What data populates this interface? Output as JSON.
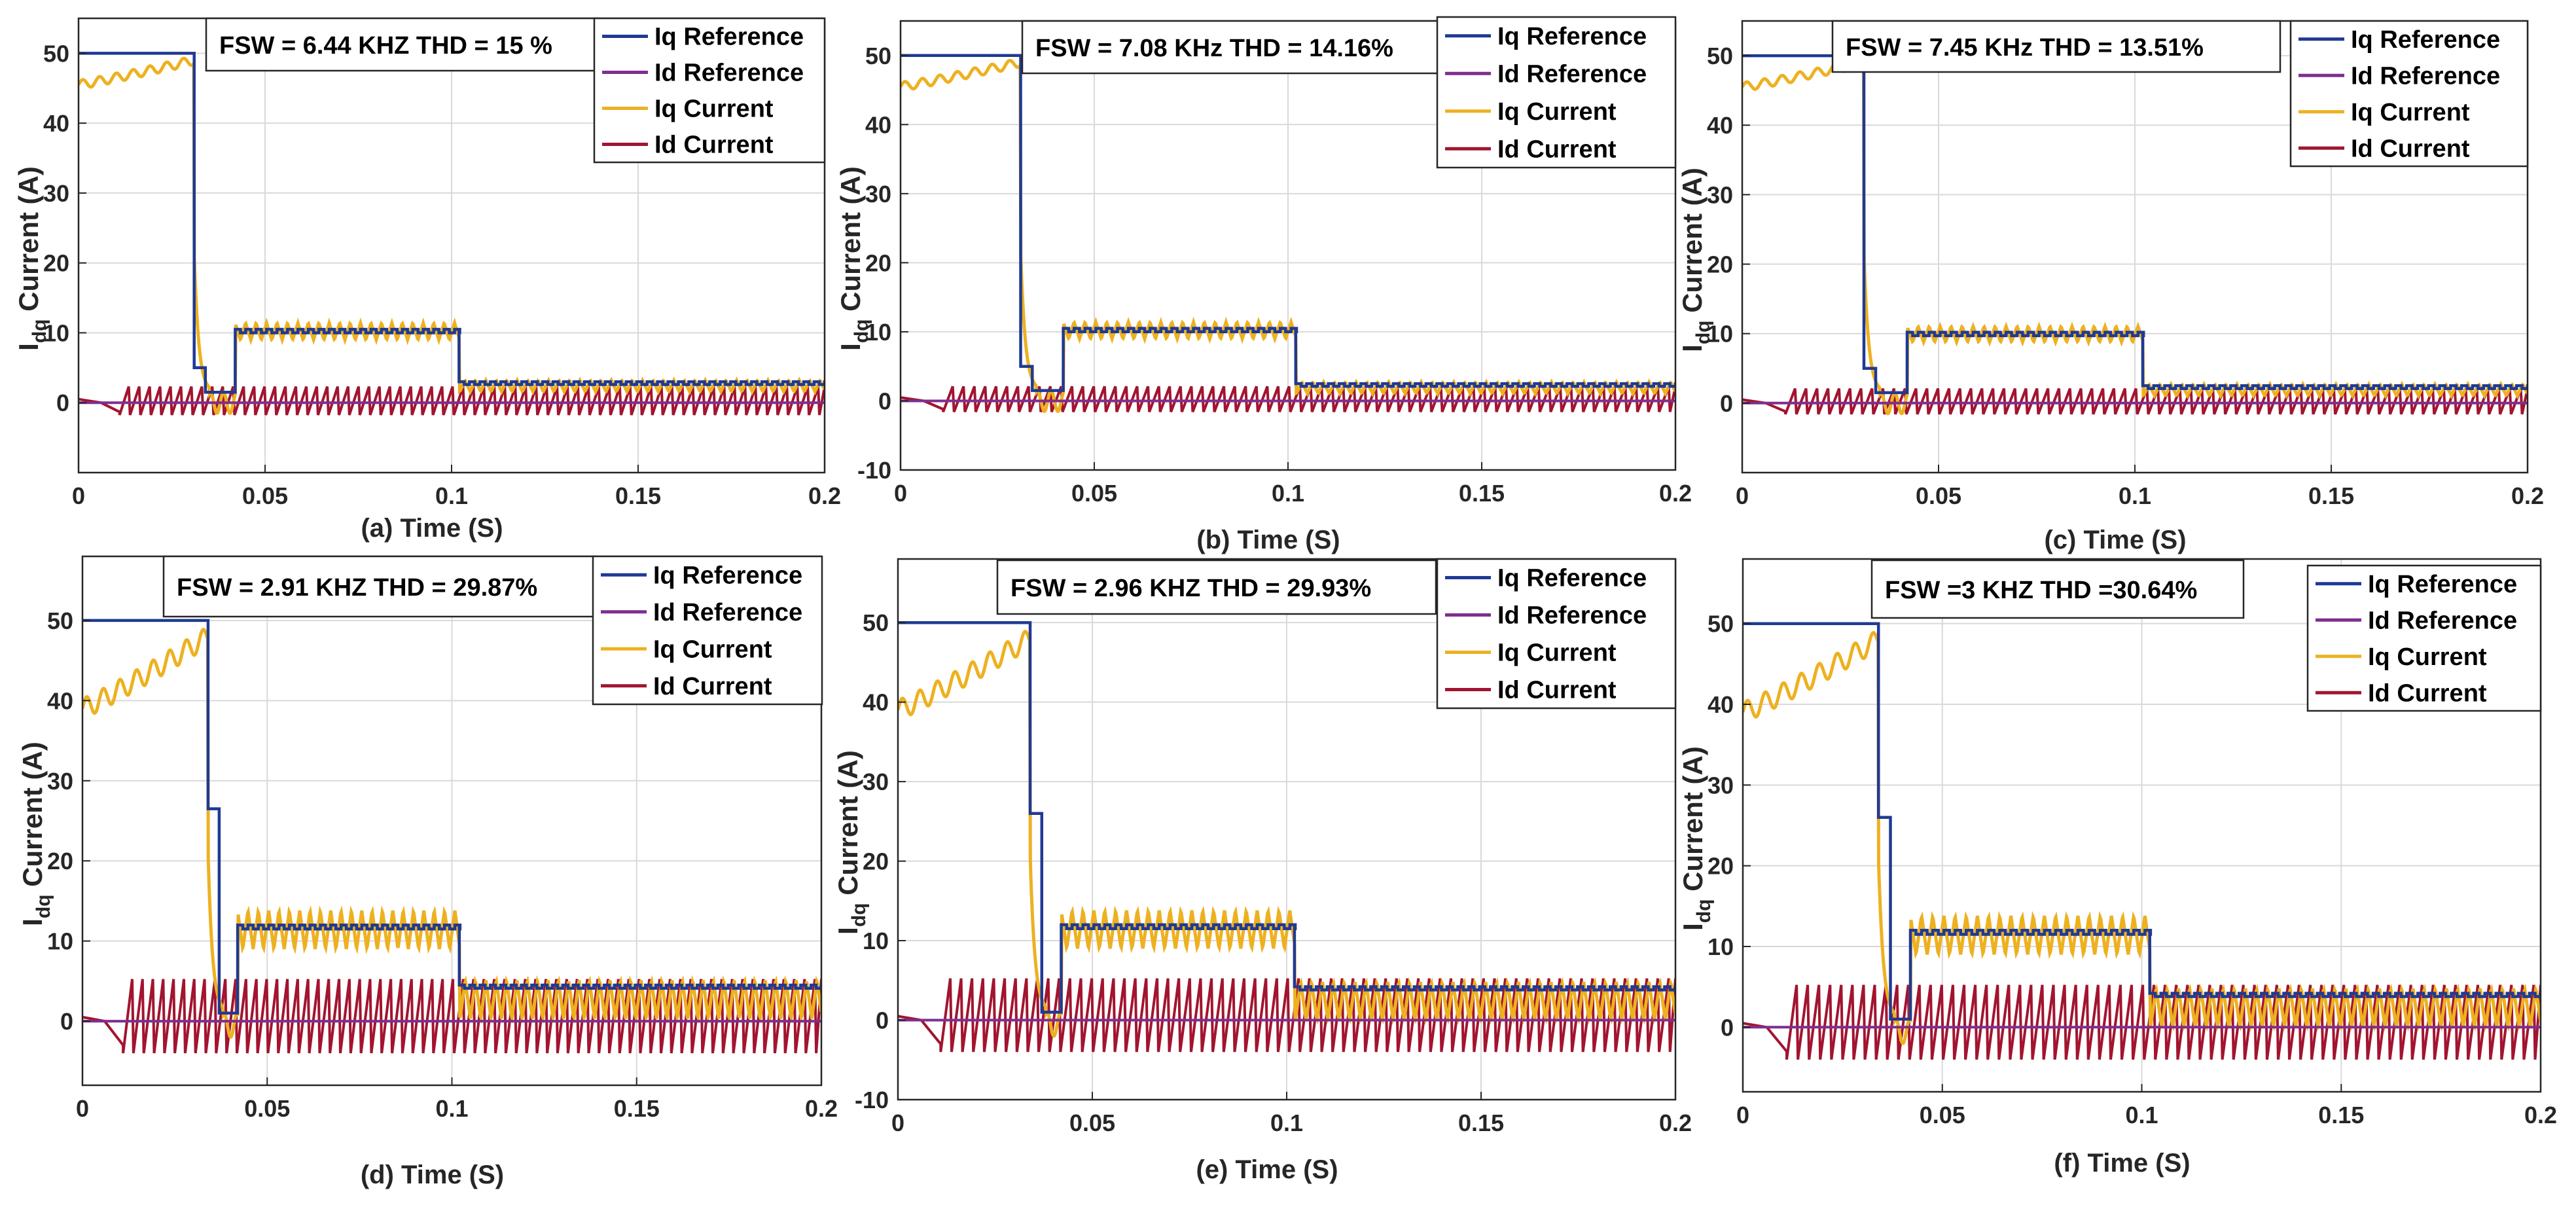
{
  "figure": {
    "type": "multi_line_panel",
    "colors": {
      "iq_reference": "#1f3a93",
      "id_reference": "#7e2f8e",
      "iq_current": "#edb120",
      "id_current": "#a2142f",
      "grid": "#d9d9d9",
      "axis": "#262626"
    }
  },
  "chart_data": [
    {
      "type": "line",
      "caption": "(a) Time (S)",
      "annotation": "FSW = 6.44 KHZ THD = 15 %",
      "ylabel": "I_dq Current (A)",
      "ylabel_main": "I",
      "ylabel_sub": "dq",
      "ylabel_unit": "Current (A)",
      "xlim": [
        0,
        0.2
      ],
      "ylim": [
        -10,
        55
      ],
      "xticks": [
        0,
        0.05,
        0.1,
        0.15,
        0.2
      ],
      "xtick_labels": [
        "0",
        "0.05",
        "0.1",
        "0.15",
        "0.2"
      ],
      "yticks": [
        0,
        10,
        20,
        30,
        40,
        50
      ],
      "ytick_labels": [
        "0",
        "10",
        "20",
        "30",
        "40",
        "50"
      ],
      "ygrid": [
        -10,
        0,
        10,
        20,
        30,
        40,
        50
      ],
      "grid": true,
      "legend": [
        "Iq Reference",
        "Id Reference",
        "Iq Current",
        "Id Current"
      ],
      "legend_position": "top-right",
      "params": {
        "step1": 0.031,
        "mid": 0.042,
        "step2": 0.102,
        "ref1": 50,
        "ref2": 10.5,
        "ref3": 3,
        "dip": 1.5,
        "iq_start": 45.5,
        "iq_end": 49,
        "id_amp": 2.2,
        "rip2": 1.5,
        "rip3": 1.0
      },
      "series": [
        {
          "name": "Iq Reference",
          "x": [
            0,
            0.031,
            0.031,
            0.034,
            0.034,
            0.042,
            0.042,
            0.102,
            0.102,
            0.2
          ],
          "y": [
            50,
            50,
            5,
            5,
            1.5,
            1.5,
            10.5,
            10.5,
            3,
            3
          ]
        },
        {
          "name": "Id Reference",
          "x": [
            0,
            0.2
          ],
          "y": [
            0,
            0
          ]
        },
        {
          "name": "Iq Current",
          "shape": "rise 45.5→49 then tracks reference steps with ripple ±1.5 A"
        },
        {
          "name": "Id Current",
          "shape": "sawtooth ripple about 0 A, amplitude ≈ 2.2 A"
        }
      ]
    },
    {
      "type": "line",
      "caption": "(b) Time (S)",
      "annotation": "FSW = 7.08 KHz THD = 14.16%",
      "ylabel": "I_dq Current (A)",
      "ylabel_main": "I",
      "ylabel_sub": "dq",
      "ylabel_unit": "Current (A)",
      "xlim": [
        0,
        0.2
      ],
      "ylim": [
        -10,
        55
      ],
      "xticks": [
        0,
        0.05,
        0.1,
        0.15,
        0.2
      ],
      "xtick_labels": [
        "0",
        "0.05",
        "0.1",
        "0.15",
        "0.2"
      ],
      "yticks": [
        -10,
        0,
        10,
        20,
        30,
        40,
        50
      ],
      "ytick_labels": [
        "-10",
        "0",
        "10",
        "20",
        "30",
        "40",
        "50"
      ],
      "ygrid": [
        -10,
        0,
        10,
        20,
        30,
        40,
        50
      ],
      "grid": true,
      "legend": [
        "Iq Reference",
        "Id Reference",
        "Iq Current",
        "Id Current"
      ],
      "legend_position": "top-right",
      "params": {
        "step1": 0.031,
        "mid": 0.042,
        "step2": 0.102,
        "ref1": 50,
        "ref2": 10.5,
        "ref3": 2.5,
        "dip": 1.5,
        "iq_start": 45.5,
        "iq_end": 49,
        "id_amp": 2.0,
        "rip2": 1.5,
        "rip3": 1.0
      },
      "series": [
        {
          "name": "Iq Reference",
          "x": [
            0,
            0.031,
            0.031,
            0.034,
            0.034,
            0.042,
            0.042,
            0.102,
            0.102,
            0.2
          ],
          "y": [
            50,
            50,
            5,
            5,
            1.5,
            1.5,
            10.5,
            10.5,
            2.5,
            2.5
          ]
        },
        {
          "name": "Id Reference",
          "x": [
            0,
            0.2
          ],
          "y": [
            0,
            0
          ]
        },
        {
          "name": "Iq Current",
          "shape": "rise 45.5→49 then tracks reference steps with ripple ±1.5 A"
        },
        {
          "name": "Id Current",
          "shape": "sawtooth ripple about 0 A, amplitude ≈ 2.0 A"
        }
      ]
    },
    {
      "type": "line",
      "caption": "(c) Time (S)",
      "annotation": "FSW = 7.45 KHz THD = 13.51%",
      "ylabel": "I_dq Current (A)",
      "ylabel_main": "I",
      "ylabel_sub": "dq",
      "ylabel_unit": "Current (A)",
      "xlim": [
        0,
        0.2
      ],
      "ylim": [
        -10,
        55
      ],
      "xticks": [
        0,
        0.05,
        0.1,
        0.15,
        0.2
      ],
      "xtick_labels": [
        "0",
        "0.05",
        "0.1",
        "0.15",
        "0.2"
      ],
      "yticks": [
        0,
        10,
        20,
        30,
        40,
        50
      ],
      "ytick_labels": [
        "0",
        "10",
        "20",
        "30",
        "40",
        "50"
      ],
      "ygrid": [
        -10,
        0,
        10,
        20,
        30,
        40,
        50
      ],
      "grid": true,
      "legend": [
        "Iq Reference",
        "Id Reference",
        "Iq Current",
        "Id Current"
      ],
      "legend_position": "top-right",
      "params": {
        "step1": 0.031,
        "mid": 0.042,
        "step2": 0.102,
        "ref1": 50,
        "ref2": 10.2,
        "ref3": 2.5,
        "dip": 1.5,
        "iq_start": 45.5,
        "iq_end": 49,
        "id_amp": 2.0,
        "rip2": 1.4,
        "rip3": 1.0
      },
      "series": [
        {
          "name": "Iq Reference",
          "x": [
            0,
            0.031,
            0.031,
            0.034,
            0.034,
            0.042,
            0.042,
            0.102,
            0.102,
            0.2
          ],
          "y": [
            50,
            50,
            5,
            5,
            1.5,
            1.5,
            10.2,
            10.2,
            2.5,
            2.5
          ]
        },
        {
          "name": "Id Reference",
          "x": [
            0,
            0.2
          ],
          "y": [
            0,
            0
          ]
        },
        {
          "name": "Iq Current",
          "shape": "rise 45.5→49 then tracks reference steps with ripple ±1.4 A"
        },
        {
          "name": "Id Current",
          "shape": "sawtooth ripple about 0 A, amplitude ≈ 2.0 A"
        }
      ]
    },
    {
      "type": "line",
      "caption": "(d) Time (S)",
      "annotation": "FSW = 2.91 KHZ THD = 29.87%",
      "ylabel": "I_dq Current (A)",
      "ylabel_main": "I",
      "ylabel_sub": "dq",
      "ylabel_unit": "Current (A)",
      "xlim": [
        0,
        0.2
      ],
      "ylim": [
        -8,
        58
      ],
      "xticks": [
        0,
        0.05,
        0.1,
        0.15,
        0.2
      ],
      "xtick_labels": [
        "0",
        "0.05",
        "0.1",
        "0.15",
        "0.2"
      ],
      "yticks": [
        0,
        10,
        20,
        30,
        40,
        50
      ],
      "ytick_labels": [
        "0",
        "10",
        "20",
        "30",
        "40",
        "50"
      ],
      "ygrid": [
        0,
        10,
        20,
        30,
        40,
        50
      ],
      "grid": true,
      "legend": [
        "Iq Reference",
        "Id Reference",
        "Iq Current",
        "Id Current"
      ],
      "legend_position": "top-right",
      "params": {
        "step1": 0.034,
        "mid": 0.042,
        "step2": 0.102,
        "ref1": 50,
        "ref2": 12,
        "ref3": 4.5,
        "dip": 1,
        "iq_start": 39,
        "iq_end": 48,
        "id_amp": 5.0,
        "rip2": 3.0,
        "rip3": 3.0
      },
      "series": [
        {
          "name": "Iq Reference",
          "x": [
            0,
            0.034,
            0.034,
            0.037,
            0.037,
            0.042,
            0.042,
            0.102,
            0.102,
            0.2
          ],
          "y": [
            50,
            50,
            26.5,
            26.5,
            1,
            1,
            12,
            12,
            4.5,
            4.5
          ]
        },
        {
          "name": "Id Reference",
          "x": [
            0,
            0.2
          ],
          "y": [
            0,
            0
          ]
        },
        {
          "name": "Iq Current",
          "shape": "rise 39→48 then tracks reference steps with ripple ±3 A"
        },
        {
          "name": "Id Current",
          "shape": "sawtooth ripple about 0 A, amplitude ≈ 5 A"
        }
      ]
    },
    {
      "type": "line",
      "caption": "(e) Time (S)",
      "annotation": "FSW = 2.96 KHZ THD = 29.93%",
      "ylabel": "I_dq Current (A)",
      "ylabel_main": "I",
      "ylabel_sub": "dq",
      "ylabel_unit": "Current (A)",
      "xlim": [
        0,
        0.2
      ],
      "ylim": [
        -10,
        58
      ],
      "xticks": [
        0,
        0.05,
        0.1,
        0.15,
        0.2
      ],
      "xtick_labels": [
        "0",
        "0.05",
        "0.1",
        "0.15",
        "0.2"
      ],
      "yticks": [
        -10,
        0,
        10,
        20,
        30,
        40,
        50
      ],
      "ytick_labels": [
        "-10",
        "0",
        "10",
        "20",
        "30",
        "40",
        "50"
      ],
      "ygrid": [
        -10,
        0,
        10,
        20,
        30,
        40,
        50
      ],
      "grid": true,
      "legend": [
        "Iq Reference",
        "Id Reference",
        "Iq Current",
        "Id Current"
      ],
      "legend_position": "top-right",
      "params": {
        "step1": 0.034,
        "mid": 0.042,
        "step2": 0.102,
        "ref1": 50,
        "ref2": 12,
        "ref3": 4.2,
        "dip": 1,
        "iq_start": 39,
        "iq_end": 48,
        "id_amp": 5.0,
        "rip2": 3.0,
        "rip3": 3.0
      },
      "series": [
        {
          "name": "Iq Reference",
          "x": [
            0,
            0.034,
            0.034,
            0.037,
            0.037,
            0.042,
            0.042,
            0.102,
            0.102,
            0.2
          ],
          "y": [
            50,
            50,
            26,
            26,
            1,
            1,
            12,
            12,
            4.2,
            4.2
          ]
        },
        {
          "name": "Id Reference",
          "x": [
            0,
            0.2
          ],
          "y": [
            0,
            0
          ]
        },
        {
          "name": "Iq Current",
          "shape": "rise 39→48 then tracks reference steps with ripple ±3 A"
        },
        {
          "name": "Id Current",
          "shape": "sawtooth ripple about 0 A, amplitude ≈ 5 A"
        }
      ]
    },
    {
      "type": "line",
      "caption": "(f) Time (S)",
      "annotation": "FSW =3 KHZ THD =30.64%",
      "ylabel": "I_dq Current (A)",
      "ylabel_main": "I",
      "ylabel_sub": "dq",
      "ylabel_unit": "Current (A)",
      "xlim": [
        0,
        0.2
      ],
      "ylim": [
        -8,
        58
      ],
      "xticks": [
        0,
        0.05,
        0.1,
        0.15,
        0.2
      ],
      "xtick_labels": [
        "0",
        "0.05",
        "0.1",
        "0.15",
        "0.2"
      ],
      "yticks": [
        0,
        10,
        20,
        30,
        40,
        50
      ],
      "ytick_labels": [
        "0",
        "10",
        "20",
        "30",
        "40",
        "50"
      ],
      "ygrid": [
        0,
        10,
        20,
        30,
        40,
        50
      ],
      "grid": true,
      "legend": [
        "Iq Reference",
        "Id Reference",
        "Iq Current",
        "Id Current"
      ],
      "legend_position": "top-right",
      "params": {
        "step1": 0.034,
        "mid": 0.042,
        "step2": 0.102,
        "ref1": 50,
        "ref2": 12,
        "ref3": 4.2,
        "dip": 1,
        "iq_start": 39,
        "iq_end": 48,
        "id_amp": 5.0,
        "rip2": 3.0,
        "rip3": 3.0
      },
      "series": [
        {
          "name": "Iq Reference",
          "x": [
            0,
            0.034,
            0.034,
            0.037,
            0.037,
            0.042,
            0.042,
            0.102,
            0.102,
            0.2
          ],
          "y": [
            50,
            50,
            26,
            26,
            1,
            1,
            12,
            12,
            4.2,
            4.2
          ]
        },
        {
          "name": "Id Reference",
          "x": [
            0,
            0.2
          ],
          "y": [
            0,
            0
          ]
        },
        {
          "name": "Iq Current",
          "shape": "rise 39→48 then tracks reference steps with ripple ±3 A"
        },
        {
          "name": "Id Current",
          "shape": "sawtooth ripple about 0 A, amplitude ≈ 5 A"
        }
      ]
    }
  ]
}
